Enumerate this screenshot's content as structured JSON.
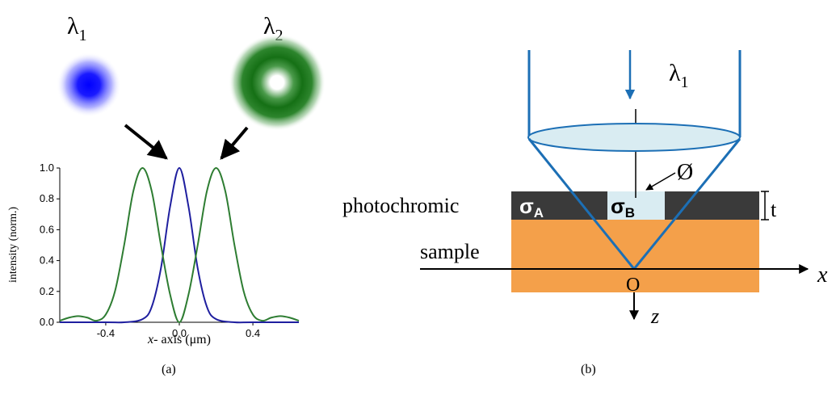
{
  "panel_a": {
    "lambda1": {
      "symbol": "λ",
      "sub": "1"
    },
    "lambda2": {
      "symbol": "λ",
      "sub": "2"
    },
    "caption": "(a)",
    "colors": {
      "blue": "#1a1aff",
      "green": "#1e7a1e",
      "blue_curve": "#1f1f9f",
      "green_curve": "#2e7d32"
    },
    "chart_data": {
      "type": "line",
      "xlabel_italic": "x",
      "xlabel_rest": "- axis (μm)",
      "ylabel": "intensity (norm.)",
      "xlim": [
        -0.65,
        0.65
      ],
      "ylim": [
        0.0,
        1.0
      ],
      "x_ticks": [
        "-0.4",
        "0.0",
        "0.4"
      ],
      "y_ticks": [
        "0.0",
        "0.2",
        "0.4",
        "0.6",
        "0.8",
        "1.0"
      ],
      "series": [
        {
          "color": "#1f1f9f",
          "x": [
            -0.65,
            -0.4,
            -0.3,
            -0.2,
            -0.15,
            -0.1,
            -0.05,
            0.0,
            0.05,
            0.1,
            0.15,
            0.2,
            0.3,
            0.4,
            0.65
          ],
          "y": [
            0.0,
            0.0,
            0.0,
            0.02,
            0.1,
            0.35,
            0.75,
            1.0,
            0.75,
            0.35,
            0.1,
            0.02,
            0.0,
            0.0,
            0.0
          ]
        },
        {
          "color": "#2e7d32",
          "x": [
            -0.65,
            -0.6,
            -0.55,
            -0.5,
            -0.45,
            -0.4,
            -0.35,
            -0.3,
            -0.25,
            -0.2,
            -0.15,
            -0.1,
            -0.05,
            0.0,
            0.05,
            0.1,
            0.15,
            0.2,
            0.25,
            0.3,
            0.35,
            0.4,
            0.45,
            0.5,
            0.55,
            0.6,
            0.65
          ],
          "y": [
            0.01,
            0.03,
            0.04,
            0.03,
            0.01,
            0.05,
            0.2,
            0.5,
            0.85,
            1.0,
            0.85,
            0.5,
            0.18,
            0.0,
            0.18,
            0.5,
            0.85,
            1.0,
            0.85,
            0.5,
            0.2,
            0.05,
            0.01,
            0.03,
            0.04,
            0.03,
            0.01
          ]
        }
      ]
    }
  },
  "panel_b": {
    "lambda1": {
      "symbol": "λ",
      "sub": "1"
    },
    "layer_label": "photochromic",
    "sample_label": "sample",
    "sigma_a": {
      "symbol": "σ",
      "sub": "A"
    },
    "sigma_b": {
      "symbol": "σ",
      "sub": "B"
    },
    "thickness_label": "t",
    "diameter_label": "Ø",
    "origin_label": "O",
    "x_axis_label": "x",
    "z_axis_label": "z",
    "caption": "(b)",
    "colors": {
      "beam": "#1c6fb5",
      "lens": "#d9ecf2",
      "dark_layer": "#3a3a3a",
      "aperture": "#d9ecf2",
      "sample": "#f4a04a"
    }
  }
}
